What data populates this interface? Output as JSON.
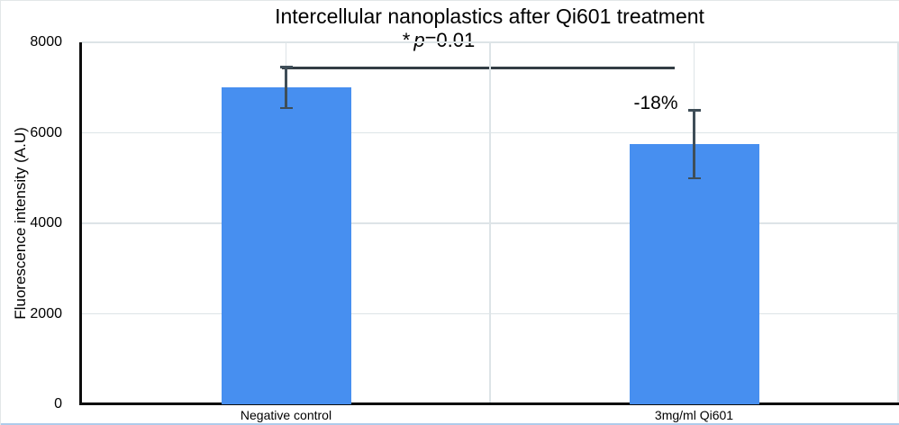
{
  "chart_data": {
    "type": "bar",
    "title": "Intercellular nanoplastics after Qi601 treatment",
    "categories": [
      "Negative control",
      "3mg/ml Qi601"
    ],
    "values": [
      7000,
      5750
    ],
    "error_bars": [
      450,
      750
    ],
    "xlabel": "",
    "ylabel": "Fluorescence intensity (A.U)",
    "ylim": [
      0,
      8000
    ],
    "yticks": [
      0,
      2000,
      4000,
      6000,
      8000
    ],
    "grid": true,
    "legend": false,
    "bar_color": "#478ff0",
    "error_bar_color": "#3f4e58",
    "gridline_color": "#dde4e7",
    "axis_color": "#0d0d0d",
    "annotations": [
      {
        "type": "significance-bracket",
        "text": "* p=0.01",
        "text_star": "*",
        "text_p": "p",
        "text_value": "=0.01",
        "between_categories": [
          0,
          1
        ]
      },
      {
        "type": "percent-change-label",
        "text": "-18%",
        "category": 1
      }
    ]
  }
}
